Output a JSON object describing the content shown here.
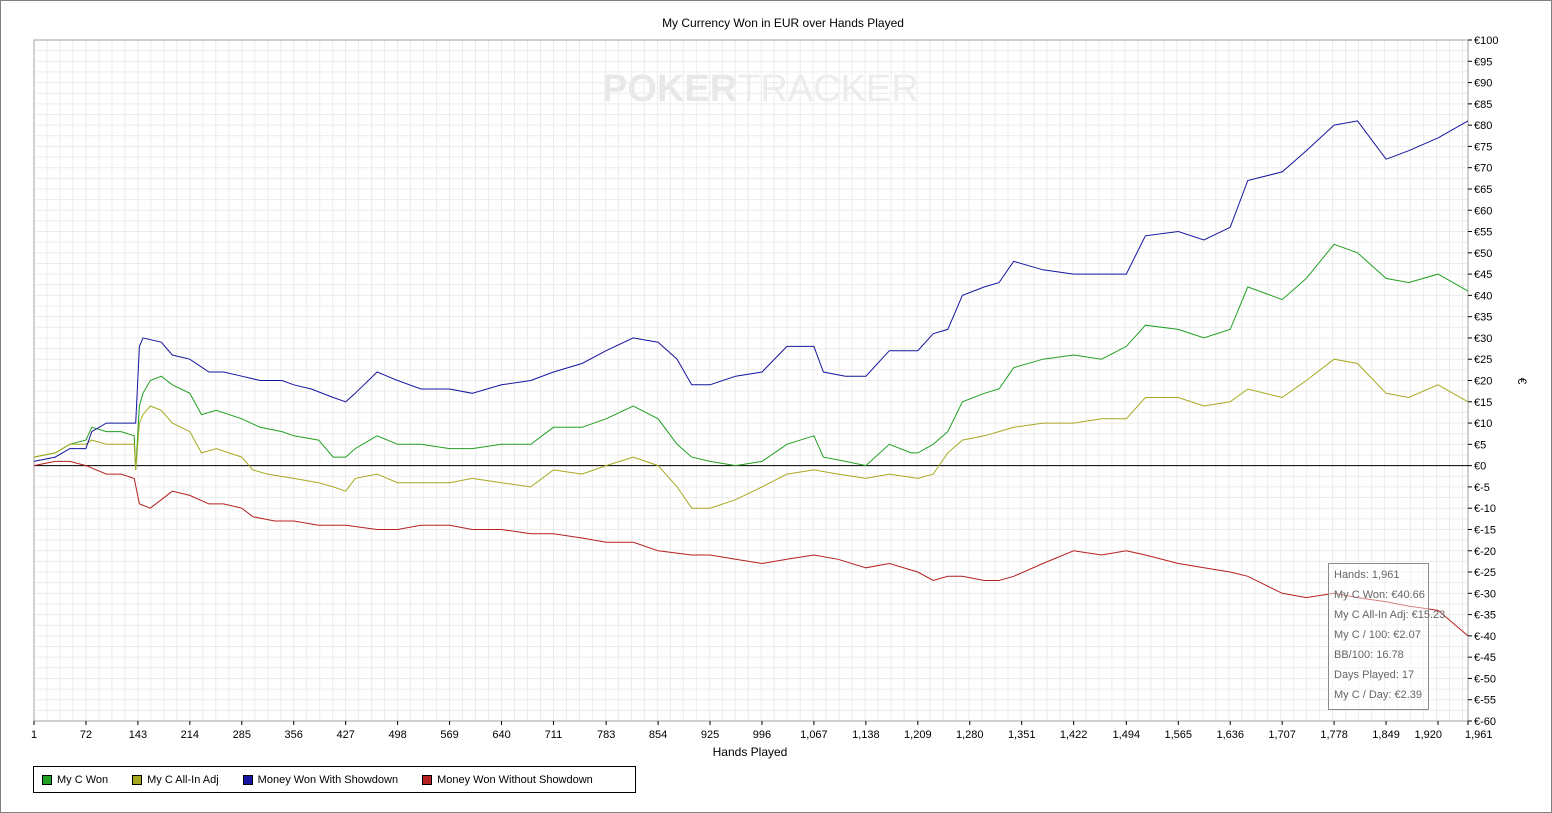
{
  "chart_data": {
    "type": "line",
    "title": "My Currency Won in EUR over Hands Played",
    "xlabel": "Hands Played",
    "ylabel": "€",
    "xlim": [
      1,
      1961
    ],
    "ylim": [
      -60,
      100
    ],
    "x_ticks": [
      "1",
      "72",
      "143",
      "214",
      "285",
      "356",
      "427",
      "498",
      "569",
      "640",
      "711",
      "783",
      "854",
      "925",
      "996",
      "1,067",
      "1,138",
      "1,209",
      "1,280",
      "1,351",
      "1,422",
      "1,494",
      "1,565",
      "1,636",
      "1,707",
      "1,778",
      "1,849",
      "1,920",
      "1,961"
    ],
    "y_ticks": [
      "€100",
      "€95",
      "€90",
      "€85",
      "€80",
      "€75",
      "€70",
      "€65",
      "€60",
      "€55",
      "€50",
      "€45",
      "€40",
      "€35",
      "€30",
      "€25",
      "€20",
      "€15",
      "€10",
      "€5",
      "€0",
      "€-5",
      "€-10",
      "€-15",
      "€-20",
      "€-25",
      "€-30",
      "€-35",
      "€-40",
      "€-45",
      "€-50",
      "€-55",
      "€-60"
    ],
    "grid": true,
    "legend_position": "bottom-left",
    "watermark": {
      "part1": "POKER",
      "part2": "TRACKER"
    },
    "series": [
      {
        "name": "My C Won",
        "color": "#22a022",
        "points": [
          [
            1,
            2
          ],
          [
            30,
            3
          ],
          [
            50,
            5
          ],
          [
            72,
            6
          ],
          [
            80,
            9
          ],
          [
            100,
            8
          ],
          [
            120,
            8
          ],
          [
            138,
            7
          ],
          [
            140,
            -1
          ],
          [
            145,
            14
          ],
          [
            150,
            17
          ],
          [
            160,
            20
          ],
          [
            175,
            21
          ],
          [
            190,
            19
          ],
          [
            214,
            17
          ],
          [
            230,
            12
          ],
          [
            250,
            13
          ],
          [
            285,
            11
          ],
          [
            310,
            9
          ],
          [
            340,
            8
          ],
          [
            356,
            7
          ],
          [
            390,
            6
          ],
          [
            410,
            2
          ],
          [
            427,
            2
          ],
          [
            440,
            4
          ],
          [
            470,
            7
          ],
          [
            498,
            5
          ],
          [
            530,
            5
          ],
          [
            569,
            4
          ],
          [
            600,
            4
          ],
          [
            640,
            5
          ],
          [
            680,
            5
          ],
          [
            711,
            9
          ],
          [
            750,
            9
          ],
          [
            783,
            11
          ],
          [
            820,
            14
          ],
          [
            854,
            11
          ],
          [
            880,
            5
          ],
          [
            900,
            2
          ],
          [
            925,
            1
          ],
          [
            960,
            0
          ],
          [
            996,
            1
          ],
          [
            1030,
            5
          ],
          [
            1067,
            7
          ],
          [
            1080,
            2
          ],
          [
            1110,
            1
          ],
          [
            1138,
            0
          ],
          [
            1170,
            5
          ],
          [
            1200,
            3
          ],
          [
            1209,
            3
          ],
          [
            1230,
            5
          ],
          [
            1250,
            8
          ],
          [
            1270,
            15
          ],
          [
            1300,
            17
          ],
          [
            1320,
            18
          ],
          [
            1340,
            23
          ],
          [
            1380,
            25
          ],
          [
            1422,
            26
          ],
          [
            1460,
            25
          ],
          [
            1494,
            28
          ],
          [
            1520,
            33
          ],
          [
            1565,
            32
          ],
          [
            1600,
            30
          ],
          [
            1636,
            32
          ],
          [
            1660,
            42
          ],
          [
            1707,
            39
          ],
          [
            1740,
            44
          ],
          [
            1778,
            52
          ],
          [
            1810,
            50
          ],
          [
            1849,
            44
          ],
          [
            1880,
            43
          ],
          [
            1920,
            45
          ],
          [
            1961,
            41
          ]
        ]
      },
      {
        "name": "My C All-In Adj",
        "color": "#a8a820",
        "points": [
          [
            1,
            2
          ],
          [
            30,
            3
          ],
          [
            50,
            5
          ],
          [
            72,
            5
          ],
          [
            80,
            6
          ],
          [
            100,
            5
          ],
          [
            120,
            5
          ],
          [
            138,
            5
          ],
          [
            140,
            -1
          ],
          [
            145,
            10
          ],
          [
            150,
            12
          ],
          [
            160,
            14
          ],
          [
            175,
            13
          ],
          [
            190,
            10
          ],
          [
            214,
            8
          ],
          [
            230,
            3
          ],
          [
            250,
            4
          ],
          [
            285,
            2
          ],
          [
            300,
            -1
          ],
          [
            320,
            -2
          ],
          [
            356,
            -3
          ],
          [
            390,
            -4
          ],
          [
            410,
            -5
          ],
          [
            427,
            -6
          ],
          [
            440,
            -3
          ],
          [
            470,
            -2
          ],
          [
            498,
            -4
          ],
          [
            530,
            -4
          ],
          [
            569,
            -4
          ],
          [
            600,
            -3
          ],
          [
            640,
            -4
          ],
          [
            680,
            -5
          ],
          [
            711,
            -1
          ],
          [
            750,
            -2
          ],
          [
            783,
            0
          ],
          [
            820,
            2
          ],
          [
            854,
            0
          ],
          [
            880,
            -5
          ],
          [
            900,
            -10
          ],
          [
            925,
            -10
          ],
          [
            960,
            -8
          ],
          [
            996,
            -5
          ],
          [
            1030,
            -2
          ],
          [
            1067,
            -1
          ],
          [
            1100,
            -2
          ],
          [
            1138,
            -3
          ],
          [
            1170,
            -2
          ],
          [
            1209,
            -3
          ],
          [
            1230,
            -2
          ],
          [
            1250,
            3
          ],
          [
            1270,
            6
          ],
          [
            1300,
            7
          ],
          [
            1320,
            8
          ],
          [
            1340,
            9
          ],
          [
            1380,
            10
          ],
          [
            1422,
            10
          ],
          [
            1460,
            11
          ],
          [
            1494,
            11
          ],
          [
            1520,
            16
          ],
          [
            1565,
            16
          ],
          [
            1600,
            14
          ],
          [
            1636,
            15
          ],
          [
            1660,
            18
          ],
          [
            1707,
            16
          ],
          [
            1740,
            20
          ],
          [
            1778,
            25
          ],
          [
            1810,
            24
          ],
          [
            1849,
            17
          ],
          [
            1880,
            16
          ],
          [
            1920,
            19
          ],
          [
            1961,
            15
          ]
        ]
      },
      {
        "name": "Money Won With Showdown",
        "color": "#1515a0",
        "points": [
          [
            1,
            1
          ],
          [
            30,
            2
          ],
          [
            50,
            4
          ],
          [
            72,
            4
          ],
          [
            80,
            8
          ],
          [
            100,
            10
          ],
          [
            120,
            10
          ],
          [
            138,
            10
          ],
          [
            140,
            10
          ],
          [
            145,
            28
          ],
          [
            150,
            30
          ],
          [
            175,
            29
          ],
          [
            190,
            26
          ],
          [
            214,
            25
          ],
          [
            240,
            22
          ],
          [
            260,
            22
          ],
          [
            285,
            21
          ],
          [
            310,
            20
          ],
          [
            340,
            20
          ],
          [
            356,
            19
          ],
          [
            380,
            18
          ],
          [
            410,
            16
          ],
          [
            427,
            15
          ],
          [
            440,
            17
          ],
          [
            470,
            22
          ],
          [
            498,
            20
          ],
          [
            530,
            18
          ],
          [
            569,
            18
          ],
          [
            600,
            17
          ],
          [
            640,
            19
          ],
          [
            680,
            20
          ],
          [
            711,
            22
          ],
          [
            750,
            24
          ],
          [
            783,
            27
          ],
          [
            820,
            30
          ],
          [
            854,
            29
          ],
          [
            880,
            25
          ],
          [
            900,
            19
          ],
          [
            925,
            19
          ],
          [
            960,
            21
          ],
          [
            996,
            22
          ],
          [
            1030,
            28
          ],
          [
            1067,
            28
          ],
          [
            1080,
            22
          ],
          [
            1110,
            21
          ],
          [
            1138,
            21
          ],
          [
            1170,
            27
          ],
          [
            1200,
            27
          ],
          [
            1209,
            27
          ],
          [
            1230,
            31
          ],
          [
            1250,
            32
          ],
          [
            1270,
            40
          ],
          [
            1300,
            42
          ],
          [
            1320,
            43
          ],
          [
            1340,
            48
          ],
          [
            1380,
            46
          ],
          [
            1422,
            45
          ],
          [
            1460,
            45
          ],
          [
            1494,
            45
          ],
          [
            1520,
            54
          ],
          [
            1565,
            55
          ],
          [
            1600,
            53
          ],
          [
            1636,
            56
          ],
          [
            1660,
            67
          ],
          [
            1707,
            69
          ],
          [
            1740,
            74
          ],
          [
            1778,
            80
          ],
          [
            1810,
            81
          ],
          [
            1849,
            72
          ],
          [
            1880,
            74
          ],
          [
            1920,
            77
          ],
          [
            1961,
            81
          ]
        ]
      },
      {
        "name": "Money Won Without Showdown",
        "color": "#b52020",
        "points": [
          [
            1,
            0
          ],
          [
            30,
            1
          ],
          [
            50,
            1
          ],
          [
            72,
            0
          ],
          [
            100,
            -2
          ],
          [
            120,
            -2
          ],
          [
            138,
            -3
          ],
          [
            145,
            -9
          ],
          [
            160,
            -10
          ],
          [
            175,
            -8
          ],
          [
            190,
            -6
          ],
          [
            214,
            -7
          ],
          [
            240,
            -9
          ],
          [
            260,
            -9
          ],
          [
            285,
            -10
          ],
          [
            300,
            -12
          ],
          [
            330,
            -13
          ],
          [
            356,
            -13
          ],
          [
            390,
            -14
          ],
          [
            427,
            -14
          ],
          [
            470,
            -15
          ],
          [
            498,
            -15
          ],
          [
            530,
            -14
          ],
          [
            569,
            -14
          ],
          [
            600,
            -15
          ],
          [
            640,
            -15
          ],
          [
            680,
            -16
          ],
          [
            711,
            -16
          ],
          [
            750,
            -17
          ],
          [
            783,
            -18
          ],
          [
            820,
            -18
          ],
          [
            854,
            -20
          ],
          [
            900,
            -21
          ],
          [
            925,
            -21
          ],
          [
            960,
            -22
          ],
          [
            996,
            -23
          ],
          [
            1030,
            -22
          ],
          [
            1067,
            -21
          ],
          [
            1100,
            -22
          ],
          [
            1138,
            -24
          ],
          [
            1170,
            -23
          ],
          [
            1209,
            -25
          ],
          [
            1230,
            -27
          ],
          [
            1250,
            -26
          ],
          [
            1270,
            -26
          ],
          [
            1300,
            -27
          ],
          [
            1320,
            -27
          ],
          [
            1340,
            -26
          ],
          [
            1380,
            -23
          ],
          [
            1422,
            -20
          ],
          [
            1460,
            -21
          ],
          [
            1494,
            -20
          ],
          [
            1520,
            -21
          ],
          [
            1565,
            -23
          ],
          [
            1600,
            -24
          ],
          [
            1636,
            -25
          ],
          [
            1660,
            -26
          ],
          [
            1707,
            -30
          ],
          [
            1740,
            -31
          ],
          [
            1778,
            -30
          ],
          [
            1810,
            -31
          ],
          [
            1849,
            -32
          ],
          [
            1880,
            -33
          ],
          [
            1920,
            -34
          ],
          [
            1961,
            -40
          ]
        ]
      }
    ],
    "tooltip": [
      "Hands: 1,961",
      "My C Won: €40.66",
      "My C All-In Adj: €15.23",
      "My C / 100: €2.07",
      "BB/100: 16.78",
      "Days Played: 17",
      "My C / Day: €2.39"
    ]
  }
}
